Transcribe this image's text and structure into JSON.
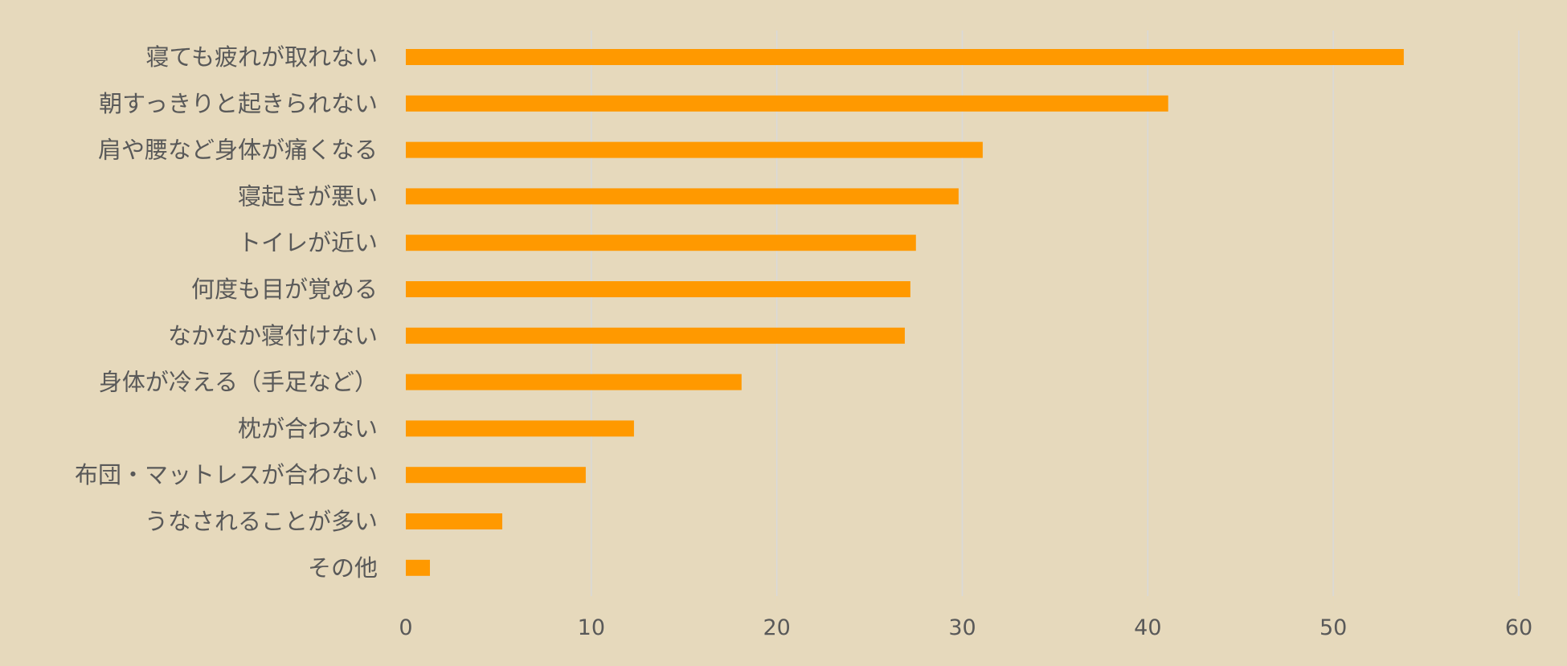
{
  "chart_data": {
    "type": "bar",
    "orientation": "horizontal",
    "categories": [
      "寝ても疲れが取れない",
      "朝すっきりと起きられない",
      "肩や腰など身体が痛くなる",
      "寝起きが悪い",
      "トイレが近い",
      "何度も目が覚める",
      "なかなか寝付けない",
      "身体が冷える（手足など）",
      "枕が合わない",
      "布団・マットレスが合わない",
      "うなされることが多い",
      "その他"
    ],
    "values": [
      53.8,
      41.1,
      31.1,
      29.8,
      27.5,
      27.2,
      26.9,
      18.1,
      12.3,
      9.7,
      5.2,
      1.3
    ],
    "xlim": [
      0,
      60
    ],
    "xticks": [
      "0",
      "10",
      "20",
      "30",
      "40",
      "50",
      "60"
    ],
    "title": "",
    "xlabel": "",
    "ylabel": "",
    "grid": true,
    "legend": "none",
    "bar_color": "#ff9900",
    "grid_color": "#d9d9d9",
    "text_color": "#595959",
    "background": "#e6d9bc"
  }
}
